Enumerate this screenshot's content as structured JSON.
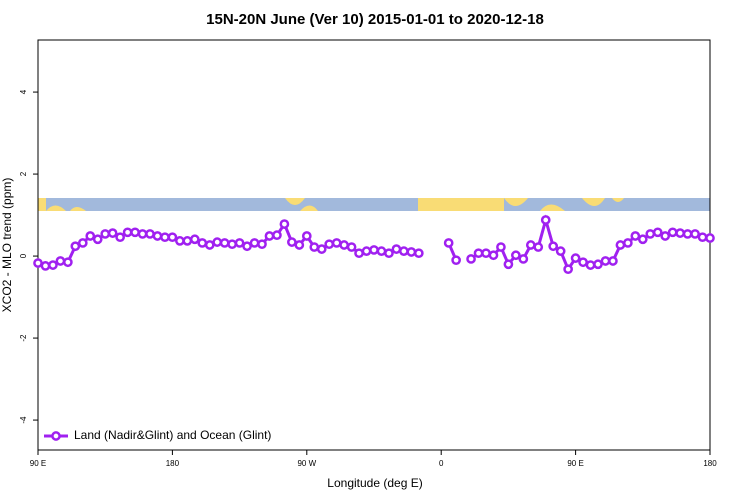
{
  "chart_data": {
    "type": "line",
    "title": "15N-20N June (Ver 10)   2015-01-01 to 2020-12-18",
    "xlabel": "Longitude (deg E)",
    "ylabel": "XCO2 - MLO trend (ppm)",
    "xlim": [
      90,
      540
    ],
    "ylim": [
      -4.73,
      5.27
    ],
    "xticks": [
      {
        "value": 90,
        "label": "90 E"
      },
      180,
      {
        "value": 270,
        "label": "90 W"
      },
      {
        "value": 360,
        "label": "0"
      },
      {
        "value": 450,
        "label": "90 E"
      },
      {
        "value": 540,
        "label": "180"
      }
    ],
    "yticks": [
      -4,
      -2,
      0,
      2,
      4
    ],
    "legend": "bottom-left",
    "x": [
      90,
      95,
      100,
      105,
      110,
      115,
      120,
      125,
      130,
      135,
      140,
      145,
      150,
      155,
      160,
      165,
      170,
      175,
      180,
      185,
      190,
      195,
      200,
      205,
      210,
      215,
      220,
      225,
      230,
      235,
      240,
      245,
      250,
      255,
      260,
      265,
      270,
      275,
      280,
      285,
      290,
      295,
      300,
      305,
      310,
      315,
      320,
      325,
      330,
      335,
      340,
      345,
      350,
      355,
      360,
      365,
      370,
      375,
      380,
      385,
      390,
      395,
      400,
      405,
      410,
      415,
      420,
      425,
      430,
      435,
      440,
      445,
      450,
      455,
      460,
      465,
      470,
      475,
      480,
      485,
      490,
      495,
      500,
      505,
      510,
      515,
      520,
      525,
      530,
      535,
      540
    ],
    "series": [
      {
        "name": "Land (Nadir&Glint) and Ocean (Glint)",
        "color": "#a020f0",
        "values": [
          -0.17,
          -0.24,
          -0.22,
          -0.12,
          -0.15,
          0.24,
          0.32,
          0.49,
          0.41,
          0.54,
          0.56,
          0.46,
          0.58,
          0.58,
          0.54,
          0.54,
          0.49,
          0.46,
          0.46,
          0.37,
          0.37,
          0.41,
          0.32,
          0.27,
          0.34,
          0.32,
          0.29,
          0.32,
          0.24,
          0.32,
          0.29,
          0.49,
          0.51,
          0.78,
          0.34,
          0.27,
          0.49,
          0.22,
          0.17,
          0.29,
          0.32,
          0.27,
          0.22,
          0.07,
          0.12,
          0.15,
          0.12,
          0.07,
          0.17,
          0.12,
          0.1,
          0.07,
          null,
          null,
          null,
          0.32,
          -0.1,
          null,
          -0.07,
          0.07,
          0.07,
          0.02,
          0.22,
          -0.2,
          0.02,
          -0.07,
          0.27,
          0.22,
          0.88,
          0.24,
          0.12,
          -0.32,
          -0.05,
          -0.15,
          -0.22,
          -0.2,
          -0.12,
          -0.12,
          0.27,
          0.32,
          0.49,
          0.41,
          0.54,
          0.58,
          0.49,
          0.58,
          0.56,
          0.54,
          0.54,
          0.46,
          0.44
        ]
      }
    ]
  }
}
